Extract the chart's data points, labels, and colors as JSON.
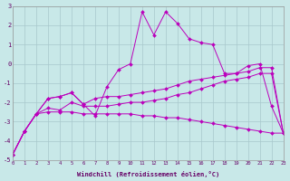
{
  "bg_color": "#c8e8e8",
  "grid_color": "#a8c8cc",
  "line_color": "#bb00bb",
  "xlim": [
    0,
    23
  ],
  "ylim": [
    -5,
    3
  ],
  "xlabel": "Windchill (Refroidissement éolien,°C)",
  "lines": [
    {
      "x": [
        0,
        1,
        2,
        3,
        4,
        5,
        6,
        7,
        8,
        9,
        10,
        11,
        12,
        13,
        14,
        15,
        16,
        17,
        18,
        19,
        20,
        21,
        22,
        23
      ],
      "y": [
        -4.7,
        -3.5,
        -2.6,
        -1.8,
        -1.7,
        -1.5,
        -2.1,
        -2.7,
        -1.2,
        -0.3,
        0.0,
        2.7,
        1.5,
        2.7,
        2.1,
        1.3,
        1.1,
        1.0,
        -0.5,
        -0.5,
        -0.1,
        0.0,
        -2.2,
        -3.6
      ]
    },
    {
      "x": [
        0,
        1,
        2,
        3,
        4,
        5,
        6,
        7,
        8,
        9,
        10,
        11,
        12,
        13,
        14,
        15,
        16,
        17,
        18,
        19,
        20,
        21,
        22,
        23
      ],
      "y": [
        -4.7,
        -3.5,
        -2.6,
        -1.8,
        -1.7,
        -1.5,
        -2.1,
        -1.8,
        -1.7,
        -1.7,
        -1.6,
        -1.5,
        -1.4,
        -1.3,
        -1.1,
        -0.9,
        -0.8,
        -0.7,
        -0.6,
        -0.5,
        -0.4,
        -0.2,
        -0.2,
        -3.6
      ]
    },
    {
      "x": [
        0,
        1,
        2,
        3,
        4,
        5,
        6,
        7,
        8,
        9,
        10,
        11,
        12,
        13,
        14,
        15,
        16,
        17,
        18,
        19,
        20,
        21,
        22,
        23
      ],
      "y": [
        -4.7,
        -3.5,
        -2.6,
        -2.3,
        -2.4,
        -2.0,
        -2.2,
        -2.2,
        -2.2,
        -2.1,
        -2.0,
        -2.0,
        -1.9,
        -1.8,
        -1.6,
        -1.5,
        -1.3,
        -1.1,
        -0.9,
        -0.8,
        -0.7,
        -0.5,
        -0.5,
        -3.6
      ]
    },
    {
      "x": [
        0,
        1,
        2,
        3,
        4,
        5,
        6,
        7,
        8,
        9,
        10,
        11,
        12,
        13,
        14,
        15,
        16,
        17,
        18,
        19,
        20,
        21,
        22,
        23
      ],
      "y": [
        -4.7,
        -3.5,
        -2.6,
        -2.5,
        -2.5,
        -2.5,
        -2.6,
        -2.6,
        -2.6,
        -2.6,
        -2.6,
        -2.7,
        -2.7,
        -2.8,
        -2.8,
        -2.9,
        -3.0,
        -3.1,
        -3.2,
        -3.3,
        -3.4,
        -3.5,
        -3.6,
        -3.6
      ]
    }
  ]
}
